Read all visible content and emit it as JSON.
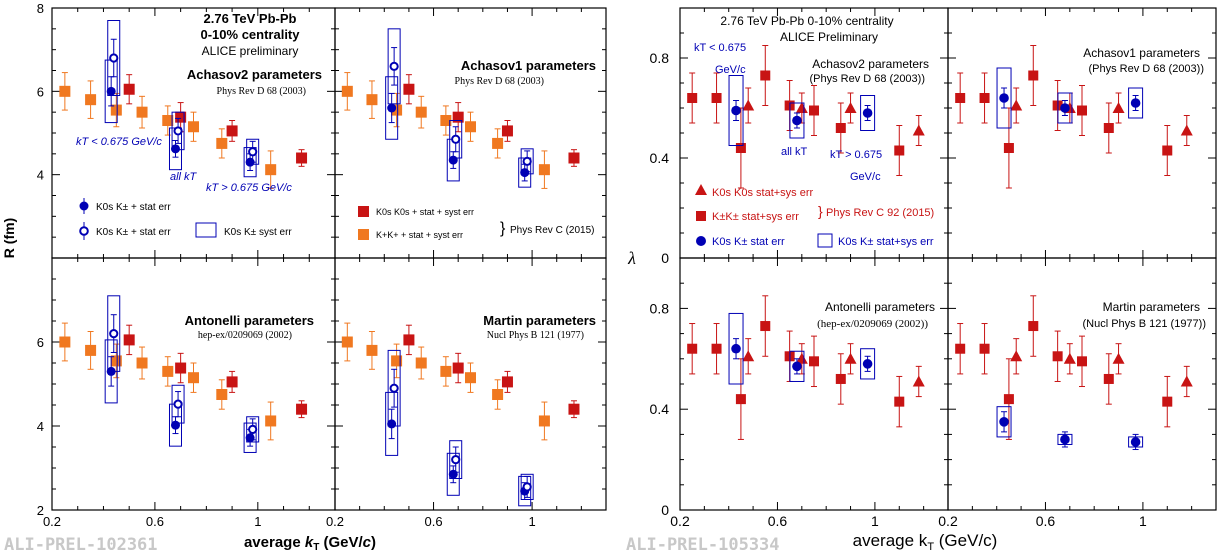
{
  "left_figure": {
    "watermark": "ALI-PREL-102361",
    "ylabel": "R (fm)",
    "xlabel_html": "average k_T (GeV/c)",
    "xlabel": "average kT (GeV/c)",
    "xticks": [
      "0.2",
      "0.6",
      "1"
    ],
    "yticks": [
      "2",
      "4",
      "6",
      "8"
    ],
    "header": {
      "line1": "2.76 TeV Pb-Pb",
      "line2": "0-10% centrality",
      "line3": "ALICE preliminary"
    },
    "kt_label_low": "kT < 0.675 GeV/c",
    "kt_label_all": "all kT",
    "kt_label_high": "kT > 0.675 GeV/c",
    "legend": {
      "solid": "K0s K± + stat err",
      "open": "K0s K± + stat err",
      "box": "K0s K± syst err",
      "k0k0": "K0s K0s + stat + syst err",
      "kk": "K+K+ + stat + syst err",
      "ref": "Phys Rev C (2015)"
    }
  },
  "right_figure": {
    "watermark": "ALI-PREL-105334",
    "ylabel": "λ",
    "xlabel": "average kT (GeV/c)",
    "xticks": [
      "0.2",
      "0.6",
      "1"
    ],
    "yticks": [
      "0",
      "0.4",
      "0.8"
    ],
    "header": {
      "line1": "2.76 TeV Pb-Pb    0-10% centrality",
      "line2": "ALICE Preliminary"
    },
    "kt_label_low_1": "kT < 0.675",
    "kt_label_low_2": "GeV/c",
    "kt_label_all": "all kT",
    "kt_label_high_1": "kT > 0.675",
    "kt_label_high_2": "GeV/c",
    "legend": {
      "tri": "K0s K0s stat+sys err",
      "sq": "K±K± stat+sys err",
      "ref": "Phys Rev C 92 (2015)",
      "circ": "K0s K± stat err",
      "box": "K0s K± stat+sys err"
    }
  },
  "chart_data": [
    {
      "type": "scatter",
      "title": "Achasov2 parameters",
      "subtitle": "Phys Rev D 68 (2003)",
      "xlabel": "average kT (GeV/c)",
      "ylabel": "R (fm)",
      "xlim": [
        0.2,
        1.3
      ],
      "ylim": [
        2,
        8
      ],
      "series": [
        {
          "name": "K0s K0s + stat + syst err",
          "points": [
            [
              0.5,
              6.05
            ],
            [
              0.7,
              5.38
            ],
            [
              0.9,
              5.05
            ],
            [
              1.17,
              4.4
            ]
          ],
          "err": [
            0.35,
            0.35,
            0.25,
            0.2
          ]
        },
        {
          "name": "K+K+ + stat + syst err",
          "points": [
            [
              0.25,
              6.0
            ],
            [
              0.35,
              5.8
            ],
            [
              0.45,
              5.55
            ],
            [
              0.55,
              5.5
            ],
            [
              0.65,
              5.3
            ],
            [
              0.75,
              5.15
            ],
            [
              0.86,
              4.75
            ],
            [
              1.05,
              4.12
            ]
          ],
          "err": [
            0.45,
            0.45,
            0.4,
            0.38,
            0.35,
            0.35,
            0.35,
            0.45
          ]
        },
        {
          "name": "K0s K± + stat err",
          "marker": "solid",
          "points": [
            [
              0.43,
              6.0
            ],
            [
              0.68,
              4.62
            ],
            [
              0.97,
              4.3
            ]
          ],
          "err": [
            0.35,
            0.2,
            0.2
          ],
          "syst": [
            0.75,
            0.5,
            0.35
          ]
        },
        {
          "name": "K0s K± + stat err",
          "marker": "open",
          "points": [
            [
              0.44,
              6.8
            ],
            [
              0.69,
              5.05
            ],
            [
              0.98,
              4.55
            ]
          ],
          "err": [
            0.45,
            0.3,
            0.25
          ],
          "syst": [
            0.9,
            0.45,
            0.3
          ]
        }
      ]
    },
    {
      "type": "scatter",
      "title": "Achasov1 parameters",
      "subtitle": "Phys Rev D 68 (2003)",
      "xlim": [
        0.2,
        1.3
      ],
      "ylim": [
        2,
        8
      ],
      "series": [
        {
          "name": "K0s K0s",
          "points": [
            [
              0.5,
              6.05
            ],
            [
              0.7,
              5.38
            ],
            [
              0.9,
              5.05
            ],
            [
              1.17,
              4.4
            ]
          ]
        },
        {
          "name": "K+K+",
          "points": [
            [
              0.25,
              6.0
            ],
            [
              0.35,
              5.8
            ],
            [
              0.45,
              5.55
            ],
            [
              0.55,
              5.5
            ],
            [
              0.65,
              5.3
            ],
            [
              0.75,
              5.15
            ],
            [
              0.86,
              4.75
            ],
            [
              1.05,
              4.12
            ]
          ]
        },
        {
          "name": "K0s K± solid",
          "points": [
            [
              0.43,
              5.6
            ],
            [
              0.68,
              4.35
            ],
            [
              0.97,
              4.05
            ]
          ]
        },
        {
          "name": "K0s K± open",
          "points": [
            [
              0.44,
              6.6
            ],
            [
              0.69,
              4.85
            ],
            [
              0.98,
              4.32
            ]
          ]
        }
      ]
    },
    {
      "type": "scatter",
      "title": "Antonelli parameters",
      "subtitle": "hep-ex/0209069 (2002)",
      "xlim": [
        0.2,
        1.3
      ],
      "ylim": [
        2,
        8
      ],
      "series": [
        {
          "name": "K0s K0s",
          "points": [
            [
              0.5,
              6.05
            ],
            [
              0.7,
              5.38
            ],
            [
              0.9,
              5.05
            ],
            [
              1.17,
              4.4
            ]
          ]
        },
        {
          "name": "K+K+",
          "points": [
            [
              0.25,
              6.0
            ],
            [
              0.35,
              5.8
            ],
            [
              0.45,
              5.55
            ],
            [
              0.55,
              5.5
            ],
            [
              0.65,
              5.3
            ],
            [
              0.75,
              5.15
            ],
            [
              0.86,
              4.75
            ],
            [
              1.05,
              4.12
            ]
          ]
        },
        {
          "name": "K0s K± solid",
          "points": [
            [
              0.43,
              5.3
            ],
            [
              0.68,
              4.02
            ],
            [
              0.97,
              3.72
            ]
          ]
        },
        {
          "name": "K0s K± open",
          "points": [
            [
              0.44,
              6.2
            ],
            [
              0.69,
              4.52
            ],
            [
              0.98,
              3.92
            ]
          ]
        }
      ]
    },
    {
      "type": "scatter",
      "title": "Martin parameters",
      "subtitle": "Nucl Phys B 121 (1977)",
      "xlim": [
        0.2,
        1.3
      ],
      "ylim": [
        2,
        8
      ],
      "series": [
        {
          "name": "K0s K0s",
          "points": [
            [
              0.5,
              6.05
            ],
            [
              0.7,
              5.38
            ],
            [
              0.9,
              5.05
            ],
            [
              1.17,
              4.4
            ]
          ]
        },
        {
          "name": "K+K+",
          "points": [
            [
              0.25,
              6.0
            ],
            [
              0.35,
              5.8
            ],
            [
              0.45,
              5.55
            ],
            [
              0.55,
              5.5
            ],
            [
              0.65,
              5.3
            ],
            [
              0.75,
              5.15
            ],
            [
              0.86,
              4.75
            ],
            [
              1.05,
              4.12
            ]
          ]
        },
        {
          "name": "K0s K± solid",
          "points": [
            [
              0.43,
              4.05
            ],
            [
              0.68,
              2.85
            ],
            [
              0.97,
              2.45
            ]
          ]
        },
        {
          "name": "K0s K± open",
          "points": [
            [
              0.44,
              4.9
            ],
            [
              0.69,
              3.2
            ],
            [
              0.98,
              2.55
            ]
          ]
        }
      ]
    },
    {
      "type": "scatter",
      "title": "Achasov2 parameters",
      "subtitle": "(Phys Rev D 68 (2003))",
      "xlabel": "average kT (GeV/c)",
      "ylabel": "λ",
      "xlim": [
        0.2,
        1.3
      ],
      "ylim": [
        0,
        1
      ],
      "series": [
        {
          "name": "K0s K0s stat+sys err",
          "marker": "triangle",
          "points": [
            [
              0.48,
              0.61
            ],
            [
              0.7,
              0.6
            ],
            [
              0.9,
              0.6
            ],
            [
              1.18,
              0.51
            ]
          ],
          "err": [
            0.07,
            0.06,
            0.06,
            0.06
          ]
        },
        {
          "name": "K±K± stat+sys err",
          "marker": "square",
          "points": [
            [
              0.25,
              0.64
            ],
            [
              0.35,
              0.64
            ],
            [
              0.45,
              0.44
            ],
            [
              0.55,
              0.73
            ],
            [
              0.65,
              0.61
            ],
            [
              0.75,
              0.59
            ],
            [
              0.86,
              0.52
            ],
            [
              1.1,
              0.43
            ]
          ],
          "err": [
            0.1,
            0.1,
            0.16,
            0.12,
            0.1,
            0.1,
            0.1,
            0.1
          ]
        },
        {
          "name": "K0s K± stat err",
          "marker": "circle",
          "points": [
            [
              0.43,
              0.59
            ],
            [
              0.68,
              0.55
            ],
            [
              0.97,
              0.58
            ]
          ],
          "err": [
            0.04,
            0.03,
            0.03
          ],
          "syst": [
            0.14,
            0.07,
            0.07
          ]
        }
      ]
    },
    {
      "type": "scatter",
      "title": "Achasov1 parameters",
      "subtitle": "(Phys Rev D 68 (2003))",
      "xlim": [
        0.2,
        1.3
      ],
      "ylim": [
        0,
        1
      ],
      "series": [
        {
          "name": "K0s K0s",
          "points": [
            [
              0.48,
              0.61
            ],
            [
              0.7,
              0.6
            ],
            [
              0.9,
              0.6
            ],
            [
              1.18,
              0.51
            ]
          ]
        },
        {
          "name": "K±K±",
          "points": [
            [
              0.25,
              0.64
            ],
            [
              0.35,
              0.64
            ],
            [
              0.45,
              0.44
            ],
            [
              0.55,
              0.73
            ],
            [
              0.65,
              0.61
            ],
            [
              0.75,
              0.59
            ],
            [
              0.86,
              0.52
            ],
            [
              1.1,
              0.43
            ]
          ]
        },
        {
          "name": "K0s K±",
          "points": [
            [
              0.43,
              0.64
            ],
            [
              0.68,
              0.6
            ],
            [
              0.97,
              0.62
            ]
          ]
        }
      ]
    },
    {
      "type": "scatter",
      "title": "Antonelli parameters",
      "subtitle": "(hep-ex/0209069 (2002))",
      "xlim": [
        0.2,
        1.3
      ],
      "ylim": [
        0,
        1
      ],
      "series": [
        {
          "name": "K0s K0s",
          "points": [
            [
              0.48,
              0.61
            ],
            [
              0.7,
              0.6
            ],
            [
              0.9,
              0.6
            ],
            [
              1.18,
              0.51
            ]
          ]
        },
        {
          "name": "K±K±",
          "points": [
            [
              0.25,
              0.64
            ],
            [
              0.35,
              0.64
            ],
            [
              0.45,
              0.44
            ],
            [
              0.55,
              0.73
            ],
            [
              0.65,
              0.61
            ],
            [
              0.75,
              0.59
            ],
            [
              0.86,
              0.52
            ],
            [
              1.1,
              0.43
            ]
          ]
        },
        {
          "name": "K0s K±",
          "points": [
            [
              0.43,
              0.64
            ],
            [
              0.68,
              0.57
            ],
            [
              0.97,
              0.58
            ]
          ]
        }
      ]
    },
    {
      "type": "scatter",
      "title": "Martin parameters",
      "subtitle": "(Nucl Phys B 121 (1977))",
      "xlim": [
        0.2,
        1.3
      ],
      "ylim": [
        0,
        1
      ],
      "series": [
        {
          "name": "K0s K0s",
          "points": [
            [
              0.48,
              0.61
            ],
            [
              0.7,
              0.6
            ],
            [
              0.9,
              0.6
            ],
            [
              1.18,
              0.51
            ]
          ]
        },
        {
          "name": "K±K±",
          "points": [
            [
              0.25,
              0.64
            ],
            [
              0.35,
              0.64
            ],
            [
              0.45,
              0.44
            ],
            [
              0.55,
              0.73
            ],
            [
              0.65,
              0.61
            ],
            [
              0.75,
              0.59
            ],
            [
              0.86,
              0.52
            ],
            [
              1.1,
              0.43
            ]
          ]
        },
        {
          "name": "K0s K±",
          "points": [
            [
              0.43,
              0.35
            ],
            [
              0.68,
              0.28
            ],
            [
              0.97,
              0.27
            ]
          ]
        }
      ]
    }
  ]
}
